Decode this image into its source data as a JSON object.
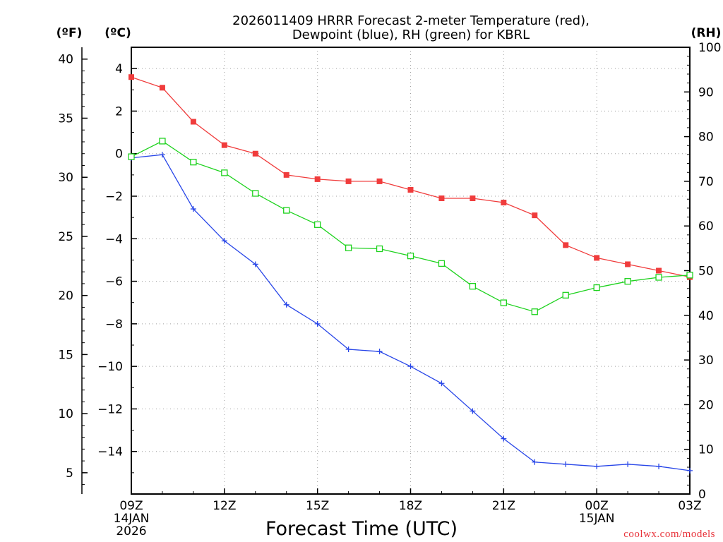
{
  "chart_data": {
    "type": "line",
    "title_line1": "2026011409 HRRR Forecast 2-meter Temperature (red),",
    "title_line2": "Dewpoint (blue), RH (green) for KBRL",
    "xlabel": "Forecast Time (UTC)",
    "credit": "coolwx.com/models",
    "axes": {
      "celsius": {
        "unit": "(ºC)",
        "range": [
          -16,
          5
        ],
        "ticks": [
          4,
          2,
          0,
          -2,
          -4,
          -6,
          -8,
          -10,
          -12,
          -14
        ]
      },
      "fahrenheit": {
        "unit": "(ºF)",
        "range": [
          3.2,
          41
        ],
        "ticks": [
          40,
          35,
          30,
          25,
          20,
          15,
          10,
          5
        ]
      },
      "rh": {
        "unit": "(RH)",
        "range": [
          0,
          100
        ],
        "ticks": [
          100,
          90,
          80,
          70,
          60,
          50,
          40,
          30,
          20,
          10,
          0
        ]
      }
    },
    "x": {
      "range": [
        0,
        18
      ],
      "ticks": [
        {
          "hour": 0,
          "label": "09Z",
          "line2": "14JAN",
          "line3": "2026"
        },
        {
          "hour": 3,
          "label": "12Z"
        },
        {
          "hour": 6,
          "label": "15Z"
        },
        {
          "hour": 9,
          "label": "18Z"
        },
        {
          "hour": 12,
          "label": "21Z"
        },
        {
          "hour": 15,
          "label": "00Z",
          "line2": "15JAN"
        },
        {
          "hour": 18,
          "label": "03Z"
        }
      ],
      "hours": [
        0,
        1,
        2,
        3,
        4,
        5,
        6,
        7,
        8,
        9,
        10,
        11,
        12,
        13,
        14,
        15,
        16,
        17,
        18
      ]
    },
    "series": [
      {
        "name": "Temperature",
        "units": "C",
        "color": "#f03c3c",
        "marker": "filled-square",
        "values": [
          3.6,
          3.1,
          1.5,
          0.4,
          0.0,
          -1.0,
          -1.2,
          -1.3,
          -1.3,
          -1.7,
          -2.1,
          -2.1,
          -2.3,
          -2.9,
          -4.3,
          -4.9,
          -5.2,
          -5.5,
          -5.8
        ]
      },
      {
        "name": "Dewpoint",
        "units": "C",
        "color": "#2846e8",
        "marker": "plus",
        "values": [
          -0.2,
          -0.05,
          -2.6,
          -4.1,
          -5.2,
          -7.1,
          -8.0,
          -9.2,
          -9.3,
          -10.0,
          -10.8,
          -12.1,
          -13.4,
          -14.5,
          -14.6,
          -14.7,
          -14.6,
          -14.7,
          -14.9
        ]
      },
      {
        "name": "RH",
        "units": "%",
        "color": "#1ed21e",
        "marker": "open-square",
        "values": [
          75.5,
          79.0,
          74.3,
          71.9,
          67.3,
          63.5,
          60.3,
          55.1,
          54.9,
          53.3,
          51.6,
          46.5,
          42.8,
          40.8,
          44.5,
          46.2,
          47.6,
          48.5,
          49.0
        ]
      }
    ]
  }
}
